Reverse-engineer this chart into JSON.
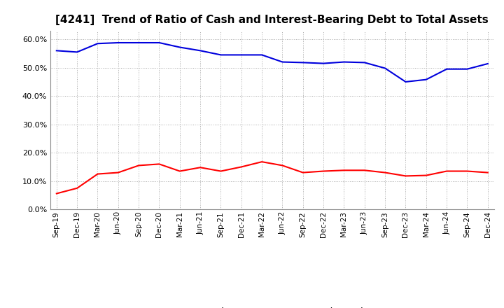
{
  "title": "[4241]  Trend of Ratio of Cash and Interest-Bearing Debt to Total Assets",
  "x_labels": [
    "Sep-19",
    "Dec-19",
    "Mar-20",
    "Jun-20",
    "Sep-20",
    "Dec-20",
    "Mar-21",
    "Jun-21",
    "Sep-21",
    "Dec-21",
    "Mar-22",
    "Jun-22",
    "Sep-22",
    "Dec-22",
    "Mar-23",
    "Jun-23",
    "Sep-23",
    "Dec-23",
    "Mar-24",
    "Jun-24",
    "Sep-24",
    "Dec-24"
  ],
  "cash": [
    0.056,
    0.075,
    0.125,
    0.13,
    0.155,
    0.16,
    0.135,
    0.148,
    0.135,
    0.15,
    0.168,
    0.155,
    0.13,
    0.135,
    0.138,
    0.138,
    0.13,
    0.118,
    0.12,
    0.135,
    0.135,
    0.13
  ],
  "interest_bearing_debt": [
    0.56,
    0.555,
    0.585,
    0.588,
    0.588,
    0.588,
    0.572,
    0.56,
    0.545,
    0.545,
    0.545,
    0.52,
    0.518,
    0.515,
    0.52,
    0.518,
    0.498,
    0.45,
    0.458,
    0.495,
    0.495,
    0.514
  ],
  "ylim": [
    0.0,
    0.63
  ],
  "yticks": [
    0.0,
    0.1,
    0.2,
    0.3,
    0.4,
    0.5,
    0.6
  ],
  "cash_color": "#FF0000",
  "debt_color": "#0000DD",
  "legend_cash": "Cash",
  "legend_debt": "Interest-Bearing Debt",
  "background_color": "#FFFFFF",
  "grid_color": "#AAAAAA"
}
